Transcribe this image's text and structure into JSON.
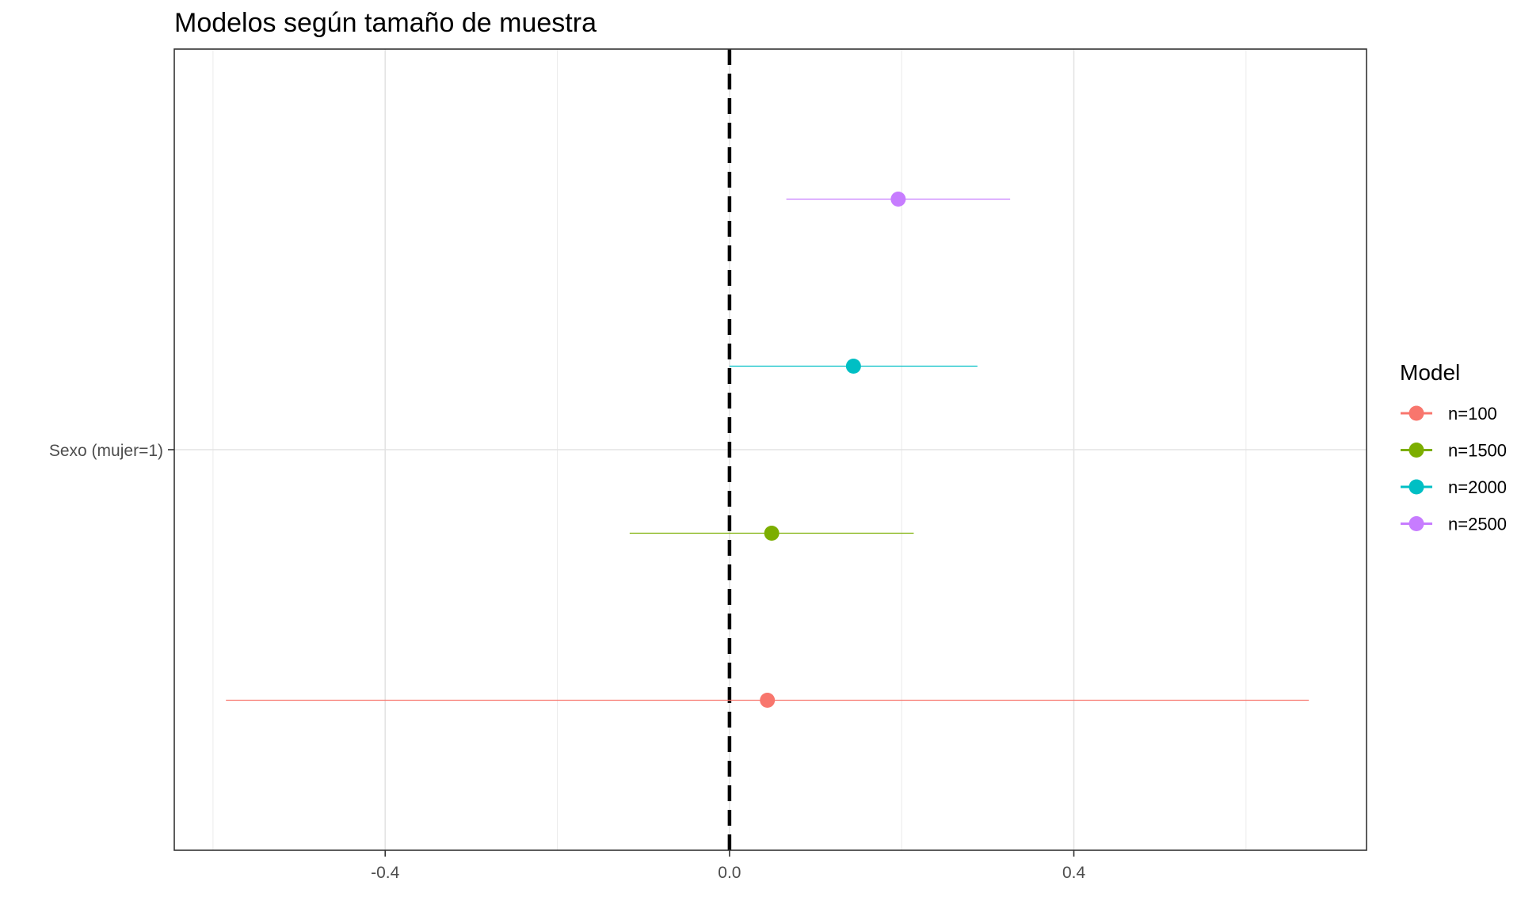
{
  "chart_data": {
    "type": "scatter",
    "subtype": "coefficient-plot",
    "title": "Modelos según tamaño de muestra",
    "xlabel": "",
    "ylabel": "",
    "x_ticks": [
      -0.4,
      0.0,
      0.4
    ],
    "x_tick_labels": [
      "-0.4",
      "0.0",
      "0.4"
    ],
    "xlim": [
      -0.645,
      0.74
    ],
    "y_category": "Sexo (mujer=1)",
    "reference_line": {
      "x": 0.0,
      "style": "dashed",
      "color": "#000000"
    },
    "grid": true,
    "legend": {
      "title": "Model",
      "position": "right"
    },
    "series": [
      {
        "name": "n=100",
        "color": "#F8766D",
        "estimate": 0.044,
        "ci_low": -0.585,
        "ci_high": 0.673
      },
      {
        "name": "n=1500",
        "color": "#7CAE00",
        "estimate": 0.049,
        "ci_low": -0.116,
        "ci_high": 0.214
      },
      {
        "name": "n=2000",
        "color": "#00BFC4",
        "estimate": 0.144,
        "ci_low": 0.0,
        "ci_high": 0.288
      },
      {
        "name": "n=2500",
        "color": "#C77CFF",
        "estimate": 0.196,
        "ci_low": 0.066,
        "ci_high": 0.326
      }
    ]
  }
}
